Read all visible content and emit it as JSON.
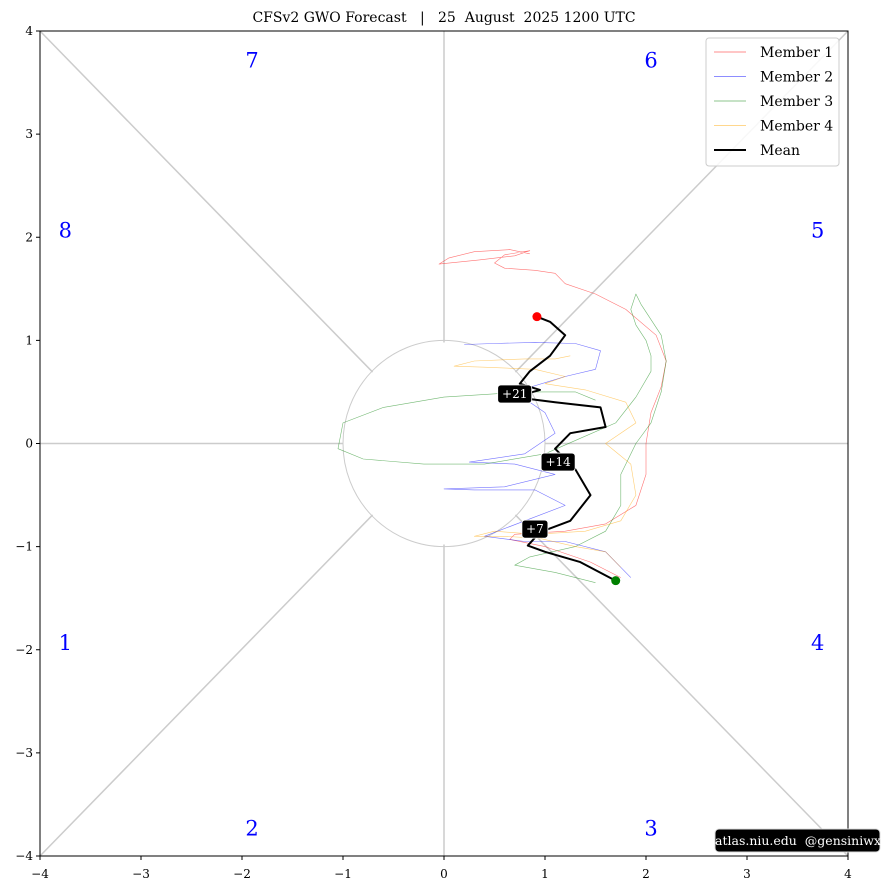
{
  "chart_data": {
    "type": "line",
    "title": "CFSv2 GWO Forecast   |   25  August  2025 1200 UTC",
    "xlim": [
      -4,
      4
    ],
    "ylim": [
      -4,
      4
    ],
    "xticks": [
      -4,
      -3,
      -2,
      -1,
      0,
      1,
      2,
      3,
      4
    ],
    "yticks": [
      -4,
      -3,
      -2,
      -1,
      0,
      1,
      2,
      3,
      4
    ],
    "xtick_labels": [
      "−4",
      "−3",
      "−2",
      "−1",
      "0",
      "1",
      "2",
      "3",
      "4"
    ],
    "ytick_labels": [
      "−4",
      "−3",
      "−2",
      "−1",
      "0",
      "1",
      "2",
      "3",
      "4"
    ],
    "unit_circle_radius": 1,
    "phase_labels": [
      {
        "label": "1",
        "x": -3.75,
        "y": -1.95
      },
      {
        "label": "2",
        "x": -1.9,
        "y": -3.75
      },
      {
        "label": "3",
        "x": 2.05,
        "y": -3.75
      },
      {
        "label": "4",
        "x": 3.7,
        "y": -1.95
      },
      {
        "label": "5",
        "x": 3.7,
        "y": 2.05
      },
      {
        "label": "6",
        "x": 2.05,
        "y": 3.7
      },
      {
        "label": "7",
        "x": -1.9,
        "y": 3.7
      },
      {
        "label": "8",
        "x": -3.75,
        "y": 2.05
      }
    ],
    "series": [
      {
        "name": "Member 1",
        "color": "#ff0000",
        "points": [
          [
            1.75,
            -1.3
          ],
          [
            1.45,
            -1.15
          ],
          [
            1.0,
            -1.0
          ],
          [
            0.65,
            -0.93
          ],
          [
            0.7,
            -0.88
          ],
          [
            1.2,
            -0.85
          ],
          [
            1.6,
            -0.78
          ],
          [
            1.9,
            -0.6
          ],
          [
            2.0,
            -0.3
          ],
          [
            2.0,
            0.0
          ],
          [
            2.05,
            0.3
          ],
          [
            2.15,
            0.55
          ],
          [
            2.2,
            0.8
          ],
          [
            2.1,
            1.05
          ],
          [
            1.8,
            1.3
          ],
          [
            1.5,
            1.45
          ],
          [
            1.2,
            1.55
          ],
          [
            1.1,
            1.65
          ],
          [
            0.9,
            1.68
          ],
          [
            0.6,
            1.7
          ],
          [
            0.5,
            1.75
          ],
          [
            0.6,
            1.83
          ],
          [
            0.85,
            1.87
          ],
          [
            0.7,
            1.82
          ],
          [
            0.35,
            1.78
          ],
          [
            -0.05,
            1.74
          ],
          [
            0.05,
            1.8
          ],
          [
            0.3,
            1.86
          ],
          [
            0.65,
            1.88
          ],
          [
            0.85,
            1.84
          ]
        ]
      },
      {
        "name": "Member 2",
        "color": "#0000ff",
        "points": [
          [
            1.85,
            -1.3
          ],
          [
            1.6,
            -1.05
          ],
          [
            1.2,
            -0.95
          ],
          [
            0.8,
            -0.95
          ],
          [
            0.4,
            -0.9
          ],
          [
            0.8,
            -0.75
          ],
          [
            1.2,
            -0.6
          ],
          [
            0.9,
            -0.45
          ],
          [
            0.3,
            -0.45
          ],
          [
            0.0,
            -0.44
          ],
          [
            0.6,
            -0.42
          ],
          [
            1.1,
            -0.3
          ],
          [
            0.7,
            -0.2
          ],
          [
            0.25,
            -0.18
          ],
          [
            0.8,
            -0.1
          ],
          [
            1.1,
            0.1
          ],
          [
            1.0,
            0.3
          ],
          [
            0.7,
            0.5
          ],
          [
            1.2,
            0.65
          ],
          [
            1.5,
            0.72
          ],
          [
            1.55,
            0.9
          ],
          [
            1.3,
            0.97
          ],
          [
            0.9,
            0.98
          ],
          [
            0.5,
            0.97
          ],
          [
            0.2,
            0.96
          ]
        ]
      },
      {
        "name": "Member 3",
        "color": "#008000",
        "points": [
          [
            1.5,
            -1.35
          ],
          [
            1.1,
            -1.25
          ],
          [
            0.7,
            -1.18
          ],
          [
            0.85,
            -1.1
          ],
          [
            1.3,
            -1.0
          ],
          [
            1.6,
            -0.85
          ],
          [
            1.75,
            -0.6
          ],
          [
            1.75,
            -0.3
          ],
          [
            1.9,
            0.0
          ],
          [
            2.05,
            0.2
          ],
          [
            2.15,
            0.5
          ],
          [
            2.2,
            0.8
          ],
          [
            2.15,
            1.05
          ],
          [
            1.95,
            1.35
          ],
          [
            1.9,
            1.45
          ],
          [
            1.85,
            1.3
          ],
          [
            1.9,
            1.15
          ],
          [
            2.0,
            1.0
          ],
          [
            2.05,
            0.85
          ],
          [
            2.05,
            0.7
          ],
          [
            1.9,
            0.45
          ],
          [
            1.7,
            0.2
          ],
          [
            1.35,
            0.05
          ],
          [
            1.0,
            -0.1
          ],
          [
            0.4,
            -0.2
          ],
          [
            -0.2,
            -0.2
          ],
          [
            -0.8,
            -0.15
          ],
          [
            -1.05,
            -0.05
          ],
          [
            -1.0,
            0.2
          ],
          [
            -0.6,
            0.35
          ],
          [
            0.0,
            0.45
          ],
          [
            0.8,
            0.5
          ],
          [
            1.3,
            0.5
          ],
          [
            1.5,
            0.42
          ]
        ]
      },
      {
        "name": "Member 4",
        "color": "#ffa500",
        "points": [
          [
            1.75,
            -1.2
          ],
          [
            1.6,
            -1.05
          ],
          [
            1.3,
            -1.0
          ],
          [
            0.95,
            -0.92
          ],
          [
            0.6,
            -0.9
          ],
          [
            0.3,
            -0.9
          ],
          [
            0.5,
            -0.85
          ],
          [
            0.9,
            -0.88
          ],
          [
            1.4,
            -0.85
          ],
          [
            1.75,
            -0.75
          ],
          [
            1.9,
            -0.5
          ],
          [
            1.85,
            -0.2
          ],
          [
            1.6,
            0.0
          ],
          [
            1.9,
            0.2
          ],
          [
            1.8,
            0.4
          ],
          [
            1.4,
            0.52
          ],
          [
            1.0,
            0.58
          ],
          [
            1.2,
            0.65
          ],
          [
            0.9,
            0.72
          ],
          [
            0.4,
            0.74
          ],
          [
            0.1,
            0.75
          ],
          [
            0.3,
            0.8
          ],
          [
            0.8,
            0.82
          ],
          [
            1.1,
            0.82
          ],
          [
            1.25,
            0.85
          ]
        ]
      },
      {
        "name": "Mean",
        "color": "#000000",
        "points": [
          [
            1.7,
            -1.33
          ],
          [
            1.35,
            -1.15
          ],
          [
            1.0,
            -1.05
          ],
          [
            0.83,
            -0.99
          ],
          [
            0.95,
            -0.86
          ],
          [
            1.25,
            -0.75
          ],
          [
            1.45,
            -0.5
          ],
          [
            1.3,
            -0.25
          ],
          [
            1.1,
            -0.05
          ],
          [
            1.25,
            0.1
          ],
          [
            1.6,
            0.16
          ],
          [
            1.55,
            0.35
          ],
          [
            1.1,
            0.4
          ],
          [
            0.7,
            0.45
          ],
          [
            0.95,
            0.52
          ],
          [
            0.75,
            0.58
          ],
          [
            0.85,
            0.7
          ],
          [
            1.05,
            0.85
          ],
          [
            1.2,
            1.05
          ],
          [
            1.05,
            1.18
          ],
          [
            0.92,
            1.23
          ]
        ]
      }
    ],
    "start_marker": {
      "x": 1.7,
      "y": -1.33,
      "color": "#008000"
    },
    "end_marker": {
      "x": 0.92,
      "y": 1.23,
      "color": "#ff0000"
    },
    "day_labels": [
      {
        "label": "+7",
        "x": 0.9,
        "y": -0.83
      },
      {
        "label": "+14",
        "x": 1.13,
        "y": -0.18
      },
      {
        "label": "+21",
        "x": 0.7,
        "y": 0.48
      }
    ],
    "legend_position": "top-right",
    "credit": "atlas.niu.edu  @gensiniwx"
  }
}
